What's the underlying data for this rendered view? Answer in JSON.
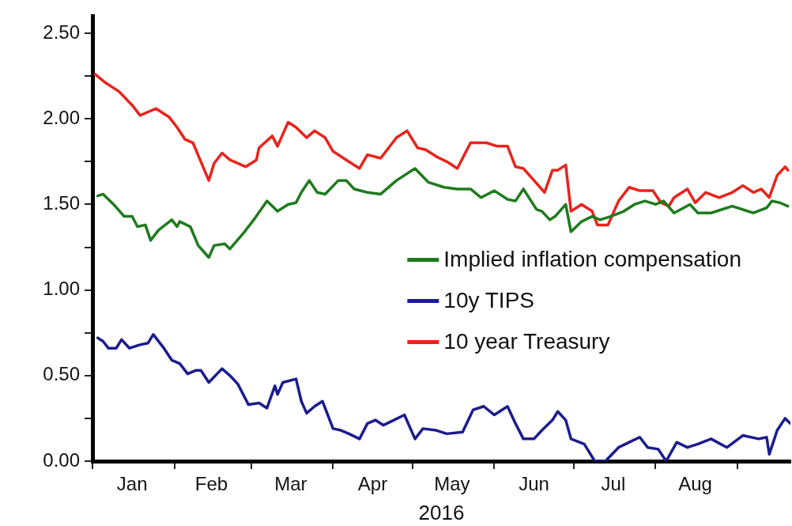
{
  "chart_data": {
    "type": "line",
    "xlabel": "2016",
    "xlim": [
      "2016-01-01",
      "2016-09-21"
    ],
    "xticks": [
      {
        "value": "2016-01-01",
        "label": null
      },
      {
        "value": "2016-01-16",
        "label": "Jan"
      },
      {
        "value": "2016-02-01",
        "label": null
      },
      {
        "value": "2016-02-15",
        "label": "Feb"
      },
      {
        "value": "2016-03-01",
        "label": null
      },
      {
        "value": "2016-03-16",
        "label": "Mar"
      },
      {
        "value": "2016-04-01",
        "label": null
      },
      {
        "value": "2016-04-16",
        "label": "Apr"
      },
      {
        "value": "2016-05-01",
        "label": null
      },
      {
        "value": "2016-05-16",
        "label": "May"
      },
      {
        "value": "2016-06-01",
        "label": null
      },
      {
        "value": "2016-06-16",
        "label": "Jun"
      },
      {
        "value": "2016-07-01",
        "label": null
      },
      {
        "value": "2016-07-16",
        "label": "Jul"
      },
      {
        "value": "2016-08-01",
        "label": null
      },
      {
        "value": "2016-08-16",
        "label": "Aug"
      },
      {
        "value": "2016-09-01",
        "label": null
      }
    ],
    "ylim": [
      0,
      2.6
    ],
    "yticks": [
      {
        "value": 0,
        "label": "0.00"
      },
      {
        "value": 0.25,
        "label": null
      },
      {
        "value": 0.5,
        "label": "0.50"
      },
      {
        "value": 0.75,
        "label": null
      },
      {
        "value": 1,
        "label": "1.00"
      },
      {
        "value": 1.25,
        "label": null
      },
      {
        "value": 1.5,
        "label": "1.50"
      },
      {
        "value": 1.75,
        "label": null
      },
      {
        "value": 2,
        "label": "2.00"
      },
      {
        "value": 2.25,
        "label": null
      },
      {
        "value": 2.5,
        "label": "2.50"
      }
    ],
    "grid": false,
    "legend": "right",
    "marker": "none",
    "line_style": "solid",
    "series": [
      {
        "name": "Implied inflation compensation",
        "color": "#1e7b1e",
        "x": [
          "2016-01-03",
          "2016-01-05",
          "2016-01-09",
          "2016-01-13",
          "2016-01-16",
          "2016-01-18",
          "2016-01-21",
          "2016-01-23",
          "2016-01-26",
          "2016-01-31",
          "2016-02-02",
          "2016-02-03",
          "2016-02-07",
          "2016-02-10",
          "2016-02-14",
          "2016-02-16",
          "2016-02-20",
          "2016-02-22",
          "2016-02-27",
          "2016-03-02",
          "2016-03-07",
          "2016-03-11",
          "2016-03-15",
          "2016-03-18",
          "2016-03-20",
          "2016-03-23",
          "2016-03-26",
          "2016-03-29",
          "2016-04-03",
          "2016-04-06",
          "2016-04-09",
          "2016-04-14",
          "2016-04-19",
          "2016-04-25",
          "2016-05-02",
          "2016-05-07",
          "2016-05-13",
          "2016-05-18",
          "2016-05-23",
          "2016-05-27",
          "2016-06-01",
          "2016-06-06",
          "2016-06-09",
          "2016-06-12",
          "2016-06-17",
          "2016-06-19",
          "2016-06-22",
          "2016-06-24",
          "2016-06-28",
          "2016-06-30",
          "2016-07-04",
          "2016-07-08",
          "2016-07-11",
          "2016-07-15",
          "2016-07-20",
          "2016-07-24",
          "2016-07-28",
          "2016-08-01",
          "2016-08-04",
          "2016-08-08",
          "2016-08-14",
          "2016-08-17",
          "2016-08-22",
          "2016-08-30",
          "2016-09-07",
          "2016-09-12",
          "2016-09-14",
          "2016-09-17",
          "2016-09-20"
        ],
        "values": [
          1.55,
          1.56,
          1.5,
          1.43,
          1.43,
          1.37,
          1.38,
          1.29,
          1.35,
          1.41,
          1.37,
          1.4,
          1.37,
          1.26,
          1.19,
          1.26,
          1.27,
          1.24,
          1.33,
          1.41,
          1.52,
          1.46,
          1.5,
          1.51,
          1.57,
          1.64,
          1.57,
          1.56,
          1.64,
          1.64,
          1.59,
          1.57,
          1.56,
          1.64,
          1.71,
          1.63,
          1.6,
          1.59,
          1.59,
          1.54,
          1.58,
          1.53,
          1.52,
          1.59,
          1.47,
          1.46,
          1.41,
          1.43,
          1.5,
          1.34,
          1.4,
          1.43,
          1.41,
          1.43,
          1.46,
          1.5,
          1.52,
          1.5,
          1.52,
          1.45,
          1.5,
          1.45,
          1.45,
          1.49,
          1.45,
          1.48,
          1.52,
          1.51,
          1.49
        ]
      },
      {
        "name": "10y TIPS",
        "color": "#1c1c8e",
        "x": [
          "2016-01-03",
          "2016-01-05",
          "2016-01-07",
          "2016-01-10",
          "2016-01-12",
          "2016-01-15",
          "2016-01-19",
          "2016-01-22",
          "2016-01-24",
          "2016-01-28",
          "2016-01-31",
          "2016-02-03",
          "2016-02-06",
          "2016-02-09",
          "2016-02-11",
          "2016-02-14",
          "2016-02-19",
          "2016-02-22",
          "2016-02-25",
          "2016-02-29",
          "2016-03-04",
          "2016-03-07",
          "2016-03-10",
          "2016-03-11",
          "2016-03-13",
          "2016-03-18",
          "2016-03-20",
          "2016-03-22",
          "2016-03-25",
          "2016-03-28",
          "2016-04-01",
          "2016-04-04",
          "2016-04-07",
          "2016-04-11",
          "2016-04-14",
          "2016-04-17",
          "2016-04-20",
          "2016-04-24",
          "2016-04-28",
          "2016-05-02",
          "2016-05-05",
          "2016-05-10",
          "2016-05-14",
          "2016-05-20",
          "2016-05-24",
          "2016-05-28",
          "2016-06-01",
          "2016-06-06",
          "2016-06-09",
          "2016-06-12",
          "2016-06-16",
          "2016-06-19",
          "2016-06-23",
          "2016-06-25",
          "2016-06-28",
          "2016-06-30",
          "2016-07-05",
          "2016-07-09",
          "2016-07-13",
          "2016-07-18",
          "2016-07-22",
          "2016-07-26",
          "2016-07-29",
          "2016-08-02",
          "2016-08-05",
          "2016-08-09",
          "2016-08-13",
          "2016-08-17",
          "2016-08-22",
          "2016-08-28",
          "2016-09-03",
          "2016-09-09",
          "2016-09-12",
          "2016-09-13",
          "2016-09-16",
          "2016-09-19",
          "2016-09-21"
        ],
        "values": [
          0.72,
          0.7,
          0.66,
          0.66,
          0.71,
          0.66,
          0.68,
          0.69,
          0.74,
          0.66,
          0.59,
          0.57,
          0.51,
          0.53,
          0.53,
          0.46,
          0.54,
          0.5,
          0.45,
          0.33,
          0.34,
          0.31,
          0.44,
          0.39,
          0.46,
          0.48,
          0.35,
          0.28,
          0.32,
          0.35,
          0.19,
          0.18,
          0.16,
          0.13,
          0.22,
          0.24,
          0.21,
          0.24,
          0.27,
          0.13,
          0.19,
          0.18,
          0.16,
          0.17,
          0.3,
          0.32,
          0.27,
          0.32,
          0.22,
          0.13,
          0.13,
          0.18,
          0.24,
          0.29,
          0.24,
          0.13,
          0.1,
          0,
          0,
          0.08,
          0.11,
          0.14,
          0.08,
          0.07,
          0,
          0.11,
          0.08,
          0.1,
          0.13,
          0.08,
          0.15,
          0.13,
          0.14,
          0.04,
          0.18,
          0.25,
          0.22
        ]
      },
      {
        "name": "10 year Treasury",
        "color": "#e8231c",
        "x": [
          "2016-01-02",
          "2016-01-06",
          "2016-01-11",
          "2016-01-16",
          "2016-01-19",
          "2016-01-25",
          "2016-01-30",
          "2016-02-02",
          "2016-02-05",
          "2016-02-08",
          "2016-02-11",
          "2016-02-14",
          "2016-02-16",
          "2016-02-19",
          "2016-02-22",
          "2016-02-28",
          "2016-03-03",
          "2016-03-04",
          "2016-03-09",
          "2016-03-11",
          "2016-03-15",
          "2016-03-18",
          "2016-03-22",
          "2016-03-25",
          "2016-03-29",
          "2016-04-01",
          "2016-04-06",
          "2016-04-11",
          "2016-04-14",
          "2016-04-19",
          "2016-04-25",
          "2016-04-29",
          "2016-05-03",
          "2016-05-06",
          "2016-05-10",
          "2016-05-14",
          "2016-05-18",
          "2016-05-23",
          "2016-05-29",
          "2016-06-02",
          "2016-06-06",
          "2016-06-09",
          "2016-06-12",
          "2016-06-16",
          "2016-06-20",
          "2016-06-23",
          "2016-06-25",
          "2016-06-28",
          "2016-06-30",
          "2016-07-04",
          "2016-07-08",
          "2016-07-10",
          "2016-07-14",
          "2016-07-18",
          "2016-07-22",
          "2016-07-26",
          "2016-07-31",
          "2016-08-03",
          "2016-08-06",
          "2016-08-08",
          "2016-08-13",
          "2016-08-16",
          "2016-08-20",
          "2016-08-25",
          "2016-08-30",
          "2016-09-03",
          "2016-09-07",
          "2016-09-10",
          "2016-09-13",
          "2016-09-16",
          "2016-09-19",
          "2016-09-20"
        ],
        "values": [
          2.26,
          2.21,
          2.16,
          2.08,
          2.02,
          2.06,
          2.01,
          1.95,
          1.88,
          1.86,
          1.75,
          1.64,
          1.74,
          1.8,
          1.76,
          1.72,
          1.76,
          1.83,
          1.9,
          1.84,
          1.98,
          1.95,
          1.89,
          1.93,
          1.89,
          1.81,
          1.76,
          1.71,
          1.79,
          1.77,
          1.89,
          1.93,
          1.83,
          1.82,
          1.78,
          1.75,
          1.71,
          1.86,
          1.86,
          1.84,
          1.84,
          1.72,
          1.71,
          1.64,
          1.57,
          1.7,
          1.7,
          1.73,
          1.46,
          1.5,
          1.46,
          1.38,
          1.38,
          1.52,
          1.6,
          1.58,
          1.58,
          1.51,
          1.49,
          1.54,
          1.59,
          1.51,
          1.57,
          1.54,
          1.57,
          1.61,
          1.57,
          1.59,
          1.54,
          1.67,
          1.72,
          1.7
        ]
      }
    ]
  }
}
